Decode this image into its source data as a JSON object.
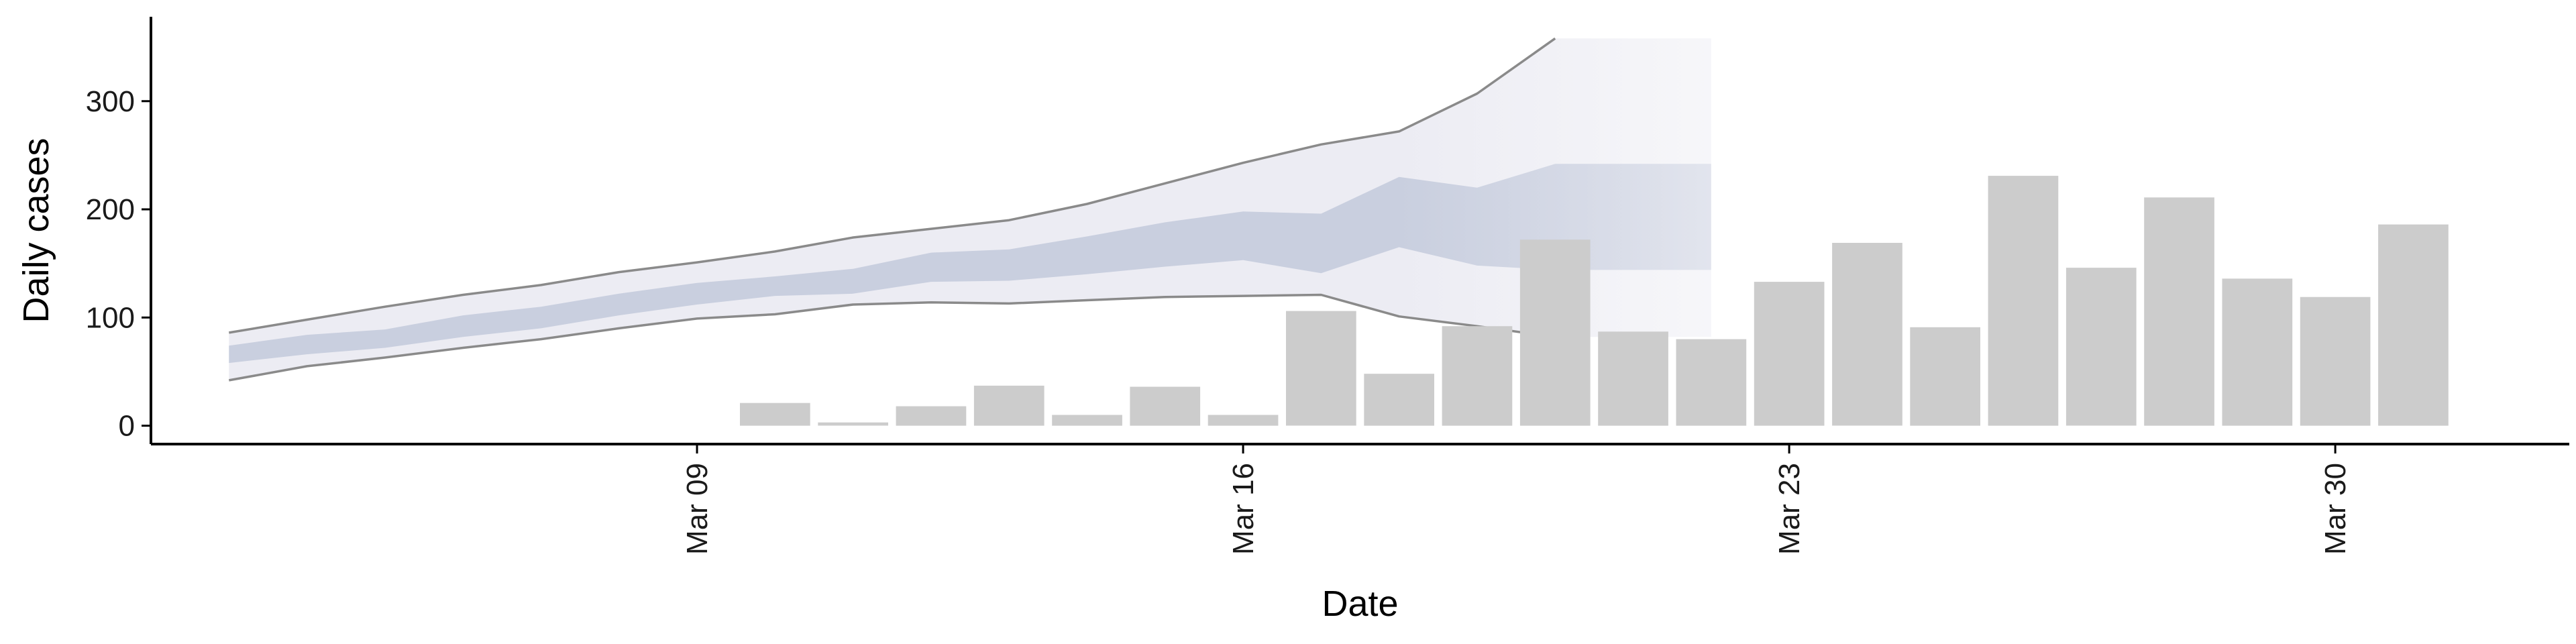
{
  "chart_data": {
    "type": "bar",
    "xlabel": "Date",
    "ylabel": "Daily cases",
    "ylim": [
      -17,
      378
    ],
    "x_range": [
      "2020-03-02",
      "2020-04-02"
    ],
    "x_ticks": [
      {
        "date": "2020-03-09",
        "label": "Mar 09"
      },
      {
        "date": "2020-03-16",
        "label": "Mar 16"
      },
      {
        "date": "2020-03-23",
        "label": "Mar 23"
      },
      {
        "date": "2020-03-30",
        "label": "Mar 30"
      }
    ],
    "y_ticks": [
      0,
      100,
      200,
      300
    ],
    "grid": false,
    "bars": [
      {
        "date": "2020-03-10",
        "value": 21
      },
      {
        "date": "2020-03-11",
        "value": 3
      },
      {
        "date": "2020-03-12",
        "value": 18
      },
      {
        "date": "2020-03-13",
        "value": 37
      },
      {
        "date": "2020-03-14",
        "value": 10
      },
      {
        "date": "2020-03-15",
        "value": 36
      },
      {
        "date": "2020-03-16",
        "value": 10
      },
      {
        "date": "2020-03-17",
        "value": 106
      },
      {
        "date": "2020-03-18",
        "value": 48
      },
      {
        "date": "2020-03-19",
        "value": 92
      },
      {
        "date": "2020-03-20",
        "value": 172
      },
      {
        "date": "2020-03-21",
        "value": 87
      },
      {
        "date": "2020-03-22",
        "value": 80
      },
      {
        "date": "2020-03-23",
        "value": 133
      },
      {
        "date": "2020-03-24",
        "value": 169
      },
      {
        "date": "2020-03-25",
        "value": 91
      },
      {
        "date": "2020-03-26",
        "value": 231
      },
      {
        "date": "2020-03-27",
        "value": 146
      },
      {
        "date": "2020-03-28",
        "value": 211
      },
      {
        "date": "2020-03-29",
        "value": 136
      },
      {
        "date": "2020-03-30",
        "value": 119
      },
      {
        "date": "2020-03-31",
        "value": 186
      }
    ],
    "estimate": {
      "dates": [
        "2020-03-03",
        "2020-03-04",
        "2020-03-05",
        "2020-03-06",
        "2020-03-07",
        "2020-03-08",
        "2020-03-09",
        "2020-03-10",
        "2020-03-11",
        "2020-03-12",
        "2020-03-13",
        "2020-03-14",
        "2020-03-15",
        "2020-03-16",
        "2020-03-17",
        "2020-03-18",
        "2020-03-19",
        "2020-03-20",
        "2020-03-21",
        "2020-03-22"
      ],
      "outer_upper": [
        86,
        98,
        110,
        121,
        130,
        142,
        151,
        161,
        174,
        182,
        190,
        205,
        224,
        243,
        260,
        272,
        307,
        358,
        358,
        358
      ],
      "outer_lower": [
        42,
        55,
        63,
        72,
        80,
        90,
        99,
        103,
        112,
        114,
        113,
        116,
        119,
        120,
        121,
        101,
        92,
        82,
        82,
        82
      ],
      "inner_upper": [
        74,
        84,
        89,
        102,
        110,
        122,
        132,
        138,
        145,
        160,
        163,
        175,
        188,
        198,
        196,
        230,
        220,
        242,
        242,
        242
      ],
      "inner_lower": [
        58,
        66,
        72,
        82,
        90,
        102,
        112,
        120,
        122,
        133,
        134,
        140,
        147,
        153,
        141,
        165,
        148,
        144,
        144,
        144
      ],
      "line_upper": [
        86,
        98,
        110,
        121,
        130,
        142,
        151,
        161,
        174,
        182,
        190,
        205,
        224,
        243,
        260,
        272,
        307,
        358
      ],
      "line_lower": [
        42,
        55,
        63,
        72,
        80,
        90,
        99,
        103,
        112,
        114,
        113,
        116,
        119,
        120,
        121,
        101,
        92,
        82
      ],
      "fade_from": "2020-03-18",
      "end": "2020-03-22"
    },
    "colors": {
      "bar": "#cccccc",
      "outer_band": "#ececf3",
      "inner_band": "#c9cfdf",
      "band_line": "#8a8a8a",
      "axis": "#000000"
    }
  }
}
